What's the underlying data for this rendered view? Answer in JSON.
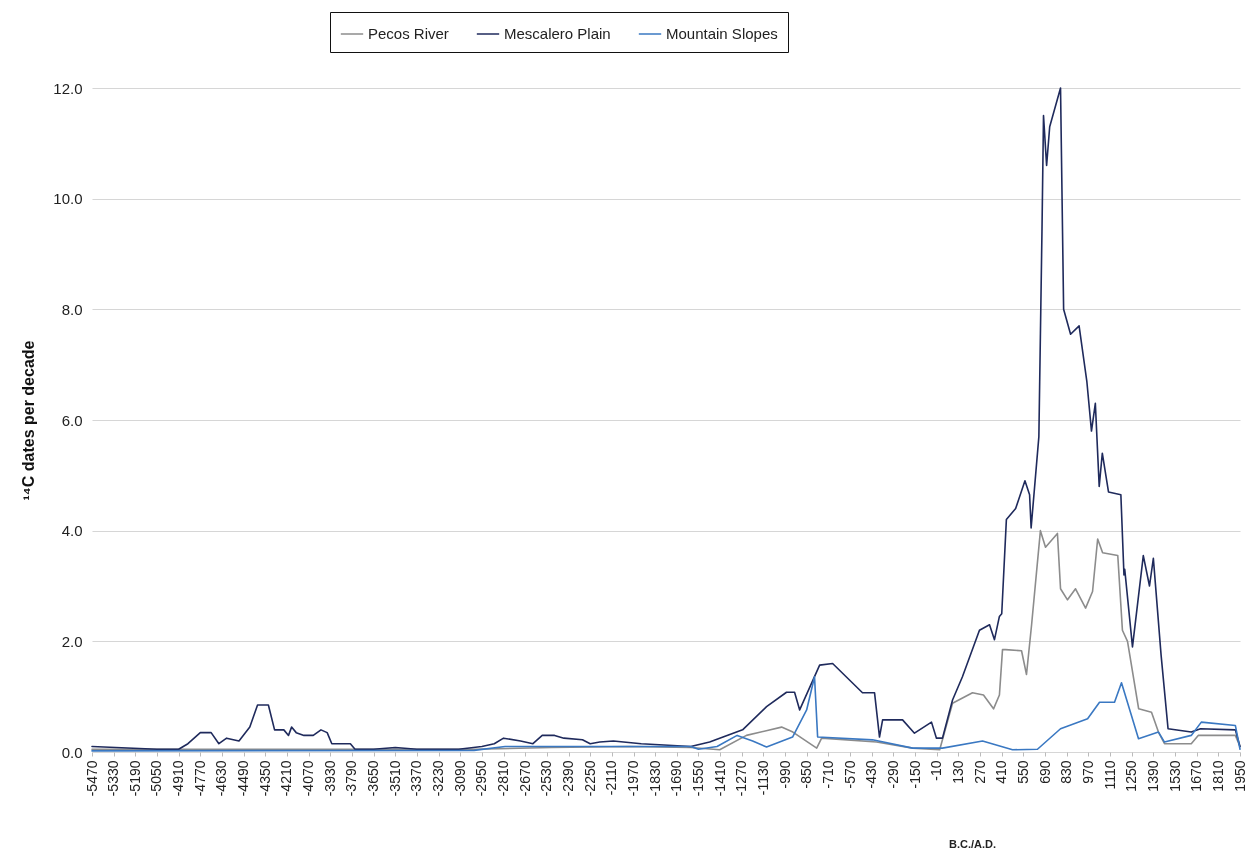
{
  "chart_data": {
    "type": "line",
    "xlabel": "B.C./A.D.",
    "ylabel": "¹⁴C dates per decade",
    "xlim": [
      -5470,
      1950
    ],
    "xticks": [
      -5470,
      -5330,
      -5190,
      -5050,
      -4910,
      -4770,
      -4630,
      -4490,
      -4350,
      -4210,
      -4070,
      -3930,
      -3790,
      -3650,
      -3510,
      -3370,
      -3230,
      -3090,
      -2950,
      -2810,
      -2670,
      -2530,
      -2390,
      -2250,
      -2110,
      -1970,
      -1830,
      -1690,
      -1550,
      -1410,
      -1270,
      -1130,
      -990,
      -850,
      -710,
      -570,
      -430,
      -290,
      -150,
      -10,
      130,
      270,
      410,
      550,
      690,
      830,
      970,
      1110,
      1250,
      1390,
      1530,
      1670,
      1810,
      1950
    ],
    "ylim": [
      0,
      12
    ],
    "yticks": [
      {
        "value": 0,
        "label": "0.0"
      },
      {
        "value": 2,
        "label": "2.0"
      },
      {
        "value": 4,
        "label": "4.0"
      },
      {
        "value": 6,
        "label": "6.0"
      },
      {
        "value": 8,
        "label": "8.0"
      },
      {
        "value": 10,
        "label": "10.0"
      },
      {
        "value": 12,
        "label": "12.0"
      }
    ],
    "grid": "y",
    "legend": "top",
    "series": [
      {
        "name": "Pecos River",
        "color": "#8c8c8c",
        "x": [
          -5470,
          -3000,
          -2500,
          -2000,
          -1600,
          -1413,
          -1240,
          -1013,
          -940,
          -786,
          -754,
          -399,
          -166,
          9,
          92,
          221,
          292,
          357,
          395,
          415,
          435,
          538,
          570,
          603,
          660,
          693,
          770,
          790,
          835,
          887,
          952,
          997,
          1030,
          1062,
          1160,
          1190,
          1223,
          1295,
          1378,
          1423,
          1462,
          1635,
          1680,
          1920,
          1950
        ],
        "values": [
          0.05,
          0.05,
          0.08,
          0.1,
          0.08,
          0.04,
          0.3,
          0.45,
          0.36,
          0.07,
          0.25,
          0.18,
          0.07,
          0.04,
          0.88,
          1.07,
          1.03,
          0.78,
          1.03,
          1.85,
          1.85,
          1.83,
          1.4,
          2.3,
          4.0,
          3.7,
          3.95,
          2.95,
          2.75,
          2.95,
          2.6,
          2.9,
          3.85,
          3.6,
          3.55,
          2.2,
          2.0,
          0.78,
          0.72,
          0.36,
          0.15,
          0.15,
          0.3,
          0.3,
          0.1
        ]
      },
      {
        "name": "Mescalero Plain",
        "color": "#1f2a5c",
        "x": [
          -5470,
          -5050,
          -4910,
          -4850,
          -4770,
          -4700,
          -4650,
          -4600,
          -4520,
          -4450,
          -4400,
          -4330,
          -4290,
          -4230,
          -4200,
          -4180,
          -4150,
          -4100,
          -4040,
          -3990,
          -3950,
          -3920,
          -3800,
          -3770,
          -3650,
          -3510,
          -3370,
          -3100,
          -2950,
          -2870,
          -2810,
          -2700,
          -2620,
          -2560,
          -2480,
          -2420,
          -2300,
          -2250,
          -2188,
          -2100,
          -1920,
          -1600,
          -1478,
          -1413,
          -1265,
          -1110,
          -981,
          -929,
          -896,
          -767,
          -683,
          -490,
          -412,
          -380,
          -360,
          -231,
          -154,
          -44,
          -12,
          27,
          92,
          156,
          266,
          331,
          363,
          395,
          410,
          440,
          500,
          560,
          590,
          600,
          650,
          670,
          680,
          700,
          720,
          790,
          810,
          855,
          910,
          960,
          990,
          1015,
          1040,
          1060,
          1100,
          1180,
          1200,
          1205,
          1255,
          1325,
          1365,
          1390,
          1440,
          1485,
          1635,
          1695,
          1920,
          1950
        ],
        "values": [
          0.1,
          0.05,
          0.05,
          0.15,
          0.35,
          0.35,
          0.15,
          0.25,
          0.2,
          0.45,
          0.85,
          0.85,
          0.4,
          0.4,
          0.3,
          0.45,
          0.35,
          0.3,
          0.3,
          0.4,
          0.35,
          0.15,
          0.15,
          0.05,
          0.05,
          0.08,
          0.05,
          0.05,
          0.1,
          0.15,
          0.25,
          0.2,
          0.15,
          0.3,
          0.3,
          0.25,
          0.22,
          0.15,
          0.18,
          0.2,
          0.15,
          0.1,
          0.18,
          0.25,
          0.4,
          0.82,
          1.08,
          1.08,
          0.76,
          1.57,
          1.6,
          1.07,
          1.07,
          0.27,
          0.58,
          0.58,
          0.34,
          0.54,
          0.25,
          0.25,
          0.94,
          1.36,
          2.2,
          2.3,
          2.03,
          2.45,
          2.5,
          4.2,
          4.4,
          4.9,
          4.65,
          4.05,
          5.7,
          9.4,
          11.5,
          10.6,
          11.3,
          12.0,
          8.0,
          7.55,
          7.7,
          6.7,
          5.8,
          6.3,
          4.8,
          5.4,
          4.7,
          4.65,
          3.2,
          3.3,
          1.9,
          3.55,
          3.0,
          3.5,
          1.75,
          0.42,
          0.36,
          0.42,
          0.4,
          0.1
        ]
      },
      {
        "name": "Mountain Slopes",
        "color": "#3a78c2",
        "x": [
          -5470,
          -3000,
          -2800,
          -2500,
          -1600,
          -1550,
          -1430,
          -1300,
          -1200,
          -1110,
          -942,
          -851,
          -800,
          -780,
          -425,
          -166,
          27,
          286,
          480,
          641,
          790,
          965,
          1042,
          1139,
          1184,
          1294,
          1423,
          1462,
          1635,
          1700,
          1920,
          1950
        ],
        "values": [
          0.02,
          0.03,
          0.1,
          0.1,
          0.1,
          0.05,
          0.1,
          0.3,
          0.2,
          0.09,
          0.27,
          0.76,
          1.36,
          0.27,
          0.22,
          0.07,
          0.07,
          0.2,
          0.04,
          0.05,
          0.42,
          0.6,
          0.9,
          0.9,
          1.25,
          0.24,
          0.36,
          0.18,
          0.3,
          0.54,
          0.48,
          0.05
        ]
      }
    ]
  }
}
